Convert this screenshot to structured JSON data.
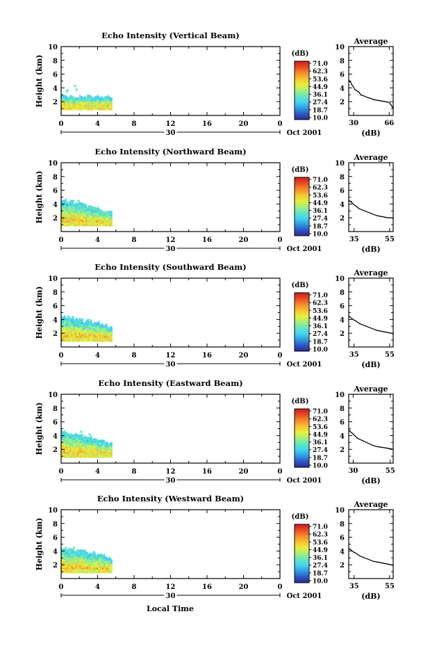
{
  "figure": {
    "bottom_xlabel": "Local Time"
  },
  "chart_data": [
    {
      "type": "heatmap",
      "title": "Echo Intensity (Vertical Beam)",
      "ylabel": "Height (km)",
      "xlim": [
        0,
        24
      ],
      "ylim": [
        0,
        10
      ],
      "xticks": [
        "0",
        "4",
        "8",
        "12",
        "16",
        "20",
        "0"
      ],
      "yticks": [
        "2",
        "4",
        "6",
        "8",
        "10"
      ],
      "date_marker": "30",
      "date_label": "Oct 2001",
      "colorbar": {
        "label": "(dB)",
        "ticks": [
          "71.0",
          "62.3",
          "53.6",
          "44.9",
          "36.1",
          "27.4",
          "18.7",
          "10.0"
        ]
      },
      "data_extent": {
        "x": [
          0,
          5.6
        ],
        "top_height": [
          2.9,
          2.7,
          2.8,
          2.6,
          2.8,
          2.7,
          2.9,
          2.6,
          2.7,
          2.5,
          2.8,
          2.6
        ]
      },
      "scattered_points": [
        [
          0.5,
          3.6
        ],
        [
          0.6,
          3.8
        ],
        [
          1.4,
          4.4
        ],
        [
          1.6,
          3.9
        ]
      ],
      "average": {
        "title": "Average",
        "xlabel": "(dB)",
        "xticks": [
          "30",
          "66"
        ],
        "xlim": [
          25,
          70
        ],
        "yticks": [
          "2",
          "4",
          "6",
          "8",
          "10"
        ],
        "x": [
          25.5,
          26,
          27,
          27.5,
          29,
          30,
          31,
          34,
          36,
          37,
          41,
          44,
          47,
          50,
          54,
          58,
          62,
          66,
          68,
          70
        ],
        "y": [
          5.1,
          4.9,
          4.9,
          4.6,
          4.3,
          4.1,
          3.8,
          3.5,
          3.3,
          3.0,
          2.8,
          2.6,
          2.5,
          2.3,
          2.2,
          2.1,
          2.0,
          1.9,
          1.5,
          1.0
        ]
      }
    },
    {
      "type": "heatmap",
      "title": "Echo Intensity (Northward Beam)",
      "ylabel": "Height (km)",
      "xlim": [
        0,
        24
      ],
      "ylim": [
        0,
        10
      ],
      "xticks": [
        "0",
        "4",
        "8",
        "12",
        "16",
        "20",
        "0"
      ],
      "yticks": [
        "2",
        "4",
        "6",
        "8",
        "10"
      ],
      "date_marker": "30",
      "date_label": "Oct 2001",
      "colorbar": {
        "label": "(dB)",
        "ticks": [
          "71.0",
          "62.3",
          "53.6",
          "44.9",
          "36.1",
          "27.4",
          "18.7",
          "10.0"
        ]
      },
      "data_extent": {
        "x": [
          0,
          5.6
        ],
        "top_height": [
          4.5,
          4.3,
          4.4,
          4.0,
          4.2,
          3.8,
          3.6,
          3.5,
          3.3,
          3.0,
          2.9,
          2.8
        ]
      },
      "scattered_points": [
        [
          1.8,
          4.6
        ],
        [
          2.4,
          4.1
        ]
      ],
      "average": {
        "title": "Average",
        "xlabel": "(dB)",
        "xticks": [
          "35",
          "55"
        ],
        "xlim": [
          32,
          57
        ],
        "yticks": [
          "2",
          "4",
          "6",
          "8",
          "10"
        ],
        "x": [
          32,
          33,
          33.5,
          34,
          35,
          36,
          37,
          38,
          40,
          42,
          44,
          46,
          48,
          50,
          52,
          54,
          56,
          57
        ],
        "y": [
          4.6,
          4.3,
          4.4,
          4.1,
          3.9,
          3.7,
          3.5,
          3.3,
          3.1,
          2.9,
          2.7,
          2.5,
          2.3,
          2.2,
          2.1,
          2.0,
          2.0,
          1.9
        ]
      }
    },
    {
      "type": "heatmap",
      "title": "Echo Intensity (Southward Beam)",
      "ylabel": "Height (km)",
      "xlim": [
        0,
        24
      ],
      "ylim": [
        0,
        10
      ],
      "xticks": [
        "0",
        "4",
        "8",
        "12",
        "16",
        "20",
        "0"
      ],
      "yticks": [
        "2",
        "4",
        "6",
        "8",
        "10"
      ],
      "date_marker": "30",
      "date_label": "Oct 2001",
      "colorbar": {
        "label": "(dB)",
        "ticks": [
          "71.0",
          "62.3",
          "53.6",
          "44.9",
          "36.1",
          "27.4",
          "18.7",
          "10.0"
        ]
      },
      "data_extent": {
        "x": [
          0,
          5.6
        ],
        "top_height": [
          4.4,
          4.3,
          4.2,
          4.0,
          4.0,
          3.6,
          3.8,
          3.5,
          3.6,
          3.3,
          3.1,
          2.9
        ]
      },
      "scattered_points": [
        [
          1.2,
          4.5
        ],
        [
          2.9,
          4.1
        ]
      ],
      "average": {
        "title": "Average",
        "xlabel": "(dB)",
        "xticks": [
          "35",
          "55"
        ],
        "xlim": [
          32,
          57
        ],
        "yticks": [
          "2",
          "4",
          "6",
          "8",
          "10"
        ],
        "x": [
          32,
          33,
          34,
          35,
          36,
          37,
          38,
          40,
          42,
          44,
          46,
          48,
          50,
          52,
          54,
          56,
          57
        ],
        "y": [
          4.5,
          4.3,
          4.1,
          3.9,
          3.8,
          3.6,
          3.4,
          3.2,
          3.0,
          2.8,
          2.6,
          2.4,
          2.3,
          2.2,
          2.1,
          2.0,
          1.9
        ]
      }
    },
    {
      "type": "heatmap",
      "title": "Echo Intensity (Eastward Beam)",
      "ylabel": "Height (km)",
      "xlim": [
        0,
        24
      ],
      "ylim": [
        0,
        10
      ],
      "xticks": [
        "0",
        "4",
        "8",
        "12",
        "16",
        "20",
        "0"
      ],
      "yticks": [
        "2",
        "4",
        "6",
        "8",
        "10"
      ],
      "date_marker": "30",
      "date_label": "Oct 2001",
      "colorbar": {
        "label": "(dB)",
        "ticks": [
          "71.0",
          "62.3",
          "53.6",
          "44.9",
          "36.1",
          "27.4",
          "18.7",
          "10.0"
        ]
      },
      "data_extent": {
        "x": [
          0,
          5.6
        ],
        "top_height": [
          4.5,
          4.3,
          4.2,
          4.1,
          4.0,
          3.8,
          3.7,
          3.5,
          3.4,
          3.2,
          3.0,
          2.9
        ]
      },
      "scattered_points": [
        [
          2.1,
          4.7
        ],
        [
          3.0,
          4.3
        ]
      ],
      "average": {
        "title": "Average",
        "xlabel": "(dB)",
        "xticks": [
          "30",
          "55"
        ],
        "xlim": [
          27,
          57
        ],
        "yticks": [
          "2",
          "4",
          "6",
          "8",
          "10"
        ],
        "x": [
          27,
          28,
          29,
          30,
          31,
          32,
          33,
          35,
          37,
          39,
          41,
          43,
          46,
          49,
          52,
          55,
          57
        ],
        "y": [
          4.9,
          4.6,
          4.4,
          4.2,
          4.0,
          3.8,
          3.6,
          3.4,
          3.2,
          3.0,
          2.8,
          2.6,
          2.4,
          2.3,
          2.2,
          2.1,
          2.0
        ]
      }
    },
    {
      "type": "heatmap",
      "title": "Echo Intensity (Westward Beam)",
      "ylabel": "Height (km)",
      "xlim": [
        0,
        24
      ],
      "ylim": [
        0,
        10
      ],
      "xticks": [
        "0",
        "4",
        "8",
        "12",
        "16",
        "20",
        "0"
      ],
      "yticks": [
        "2",
        "4",
        "6",
        "8",
        "10"
      ],
      "date_marker": "30",
      "date_label": "Oct 2001",
      "colorbar": {
        "label": "(dB)",
        "ticks": [
          "71.0",
          "62.3",
          "53.6",
          "44.9",
          "36.1",
          "27.4",
          "18.7",
          "10.0"
        ]
      },
      "data_extent": {
        "x": [
          0,
          5.6
        ],
        "top_height": [
          4.4,
          4.3,
          4.2,
          4.1,
          4.0,
          3.9,
          3.6,
          3.7,
          3.5,
          3.4,
          3.1,
          2.9
        ]
      },
      "scattered_points": [
        [
          1.3,
          4.6
        ],
        [
          3.5,
          4.0
        ]
      ],
      "average": {
        "title": "Average",
        "xlabel": "(dB)",
        "xticks": [
          "35",
          "55"
        ],
        "xlim": [
          32,
          57
        ],
        "yticks": [
          "2",
          "4",
          "6",
          "8",
          "10"
        ],
        "x": [
          32,
          33,
          34,
          35,
          36,
          37,
          38,
          40,
          42,
          44,
          46,
          48,
          50,
          52,
          54,
          56,
          57
        ],
        "y": [
          4.4,
          4.2,
          4.0,
          3.8,
          3.7,
          3.5,
          3.3,
          3.1,
          2.9,
          2.7,
          2.5,
          2.4,
          2.3,
          2.2,
          2.1,
          2.0,
          1.9
        ]
      }
    }
  ],
  "colormap": [
    "#2b2b8c",
    "#2d57c8",
    "#2f9ee0",
    "#43d3f0",
    "#63e6c0",
    "#a8ee78",
    "#e8ee3a",
    "#f8c030",
    "#f58b2a",
    "#e84a22",
    "#c81e1e"
  ]
}
